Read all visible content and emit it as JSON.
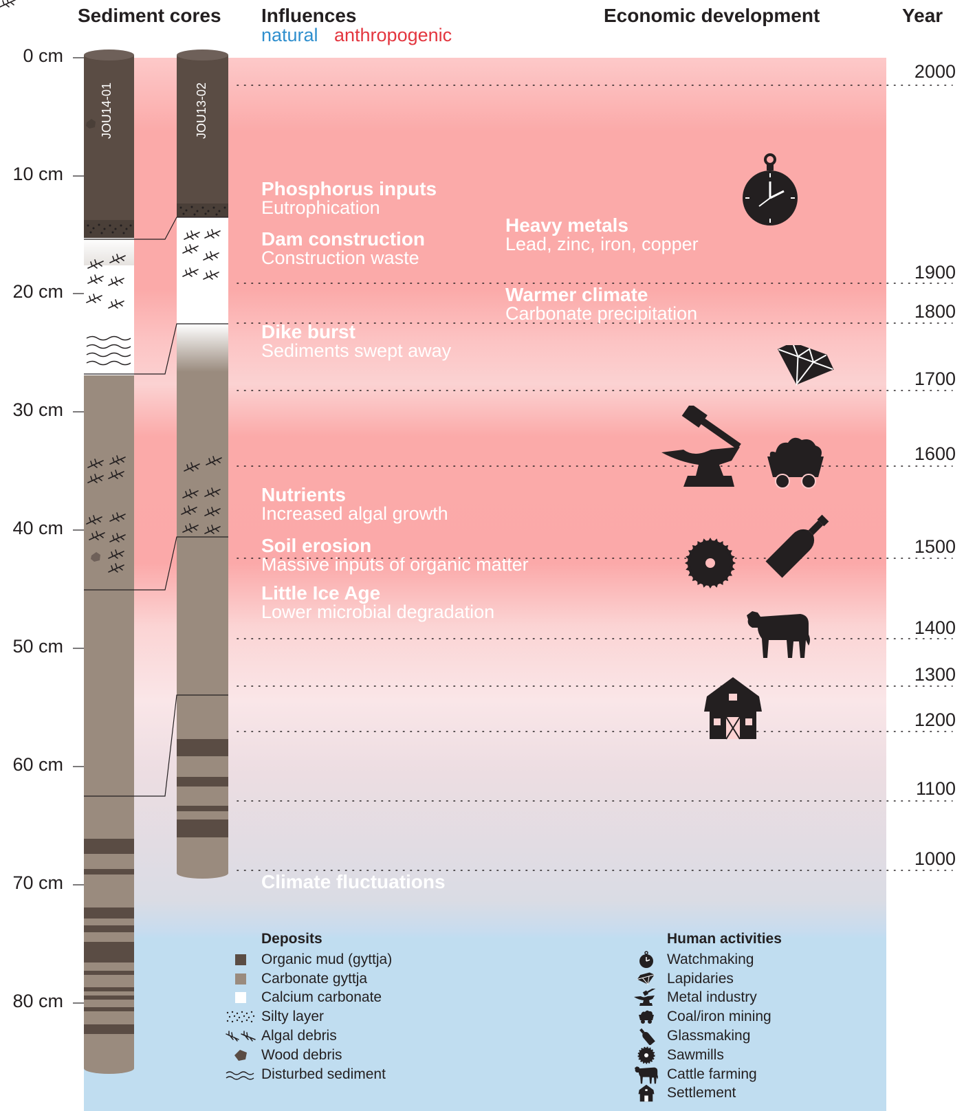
{
  "headers": {
    "sediment_cores": "Sediment cores",
    "influences": "Influences",
    "natural": "natural",
    "anthropogenic": "anthropogenic",
    "economic_development": "Economic development",
    "year": "Year"
  },
  "colors": {
    "natural": "#2f8fce",
    "anthropogenic": "#e3363f",
    "natural_band": "#c0ddf0",
    "anthropogenic_band": "#fba9a9",
    "organic_mud": "#5a4c44",
    "carbonate_gyttja": "#9a8b7e",
    "calcium_carbonate": "#ffffff",
    "icon": "#231f20"
  },
  "depth_scale": [
    "0 cm",
    "10 cm",
    "20 cm",
    "30 cm",
    "40 cm",
    "50 cm",
    "60 cm",
    "70 cm",
    "80 cm"
  ],
  "years": [
    "2000",
    "1900",
    "1800",
    "1700",
    "1600",
    "1500",
    "1400",
    "1300",
    "1200",
    "1100",
    "1000"
  ],
  "cores": [
    {
      "id": "JOU14-01"
    },
    {
      "id": "JOU13-02"
    }
  ],
  "influences": [
    {
      "title": "Phosphorus inputs",
      "desc": "Eutrophication"
    },
    {
      "title": "Dam construction",
      "desc": "Construction waste"
    },
    {
      "title": "Heavy metals",
      "desc": "Lead, zinc, iron, copper"
    },
    {
      "title": "Warmer climate",
      "desc": "Carbonate precipitation"
    },
    {
      "title": "Dike burst",
      "desc": "Sediments swept away"
    },
    {
      "title": "Nutrients",
      "desc": "Increased algal growth"
    },
    {
      "title": "Soil erosion",
      "desc": "Massive inputs of organic matter"
    },
    {
      "title": "Little Ice Age",
      "desc": "Lower microbial degradation"
    },
    {
      "title": "Climate fluctuations",
      "desc": ""
    }
  ],
  "activities": [
    {
      "icon": "pocket-watch-icon"
    },
    {
      "icon": "gem-icon"
    },
    {
      "icon": "anvil-hammer-icon"
    },
    {
      "icon": "coal-cart-icon"
    },
    {
      "icon": "bottle-icon"
    },
    {
      "icon": "saw-blade-icon"
    },
    {
      "icon": "cow-icon"
    },
    {
      "icon": "barn-icon"
    }
  ],
  "legend_deposits": {
    "title": "Deposits",
    "items": [
      {
        "label": "Organic mud (gyttja)",
        "icon": "organic-mud-swatch"
      },
      {
        "label": "Carbonate gyttja",
        "icon": "carbonate-gyttja-swatch"
      },
      {
        "label": "Calcium carbonate",
        "icon": "calcium-carbonate-swatch"
      },
      {
        "label": "Silty layer",
        "icon": "silty-layer-icon"
      },
      {
        "label": "Algal debris",
        "icon": "algal-debris-icon"
      },
      {
        "label": "Wood debris",
        "icon": "wood-debris-icon"
      },
      {
        "label": "Disturbed sediment",
        "icon": "disturbed-sediment-icon"
      }
    ]
  },
  "legend_activities": {
    "title": "Human activities",
    "items": [
      {
        "label": "Watchmaking",
        "icon": "pocket-watch-icon"
      },
      {
        "label": "Lapidaries",
        "icon": "gem-icon"
      },
      {
        "label": "Metal industry",
        "icon": "anvil-hammer-icon"
      },
      {
        "label": "Coal/iron mining",
        "icon": "coal-cart-icon"
      },
      {
        "label": "Glassmaking",
        "icon": "bottle-icon"
      },
      {
        "label": "Sawmills",
        "icon": "saw-blade-icon"
      },
      {
        "label": "Cattle farming",
        "icon": "cow-icon"
      },
      {
        "label": "Settlement",
        "icon": "barn-icon"
      }
    ]
  }
}
